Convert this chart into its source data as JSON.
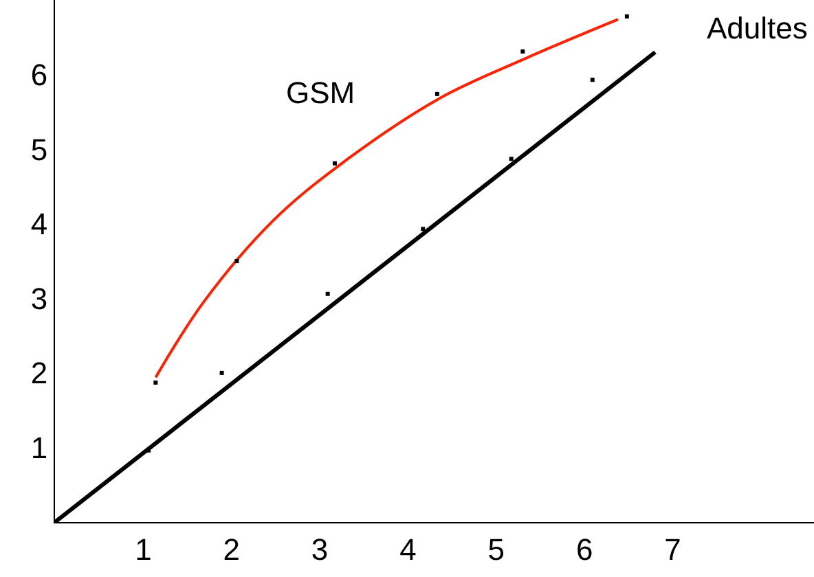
{
  "chart_data": {
    "type": "line",
    "xlim": [
      0,
      8.6
    ],
    "ylim": [
      0,
      7
    ],
    "xticks": [
      1,
      2,
      3,
      4,
      5,
      6,
      7
    ],
    "yticks": [
      1,
      2,
      3,
      4,
      5,
      6
    ],
    "grid": false,
    "series": [
      {
        "color": "#000000",
        "x": [
          0,
          6.8
        ],
        "values": [
          0,
          6.3
        ],
        "marker": "none"
      },
      {
        "color": "#ff2200",
        "x": [
          1.14,
          1.69,
          2.47,
          3.25,
          4.34,
          5.28,
          6.38
        ],
        "values": [
          1.94,
          2.96,
          4.04,
          4.81,
          5.67,
          6.19,
          6.74
        ],
        "marker": "none"
      },
      {
        "type": "scatter",
        "color": "#000000",
        "x": [
          1.06,
          1.89,
          3.09,
          4.17,
          5.17,
          6.09
        ],
        "values": [
          0.96,
          2.0,
          3.06,
          3.93,
          4.87,
          5.93
        ],
        "marker": "square"
      },
      {
        "type": "scatter",
        "color": "#000000",
        "x": [
          1.14,
          2.06,
          3.17,
          4.33,
          5.3,
          6.48
        ],
        "values": [
          1.87,
          3.5,
          4.81,
          5.74,
          6.31,
          6.78
        ],
        "marker": "square"
      }
    ],
    "annotations": [
      "GSM",
      "Adultes"
    ]
  }
}
